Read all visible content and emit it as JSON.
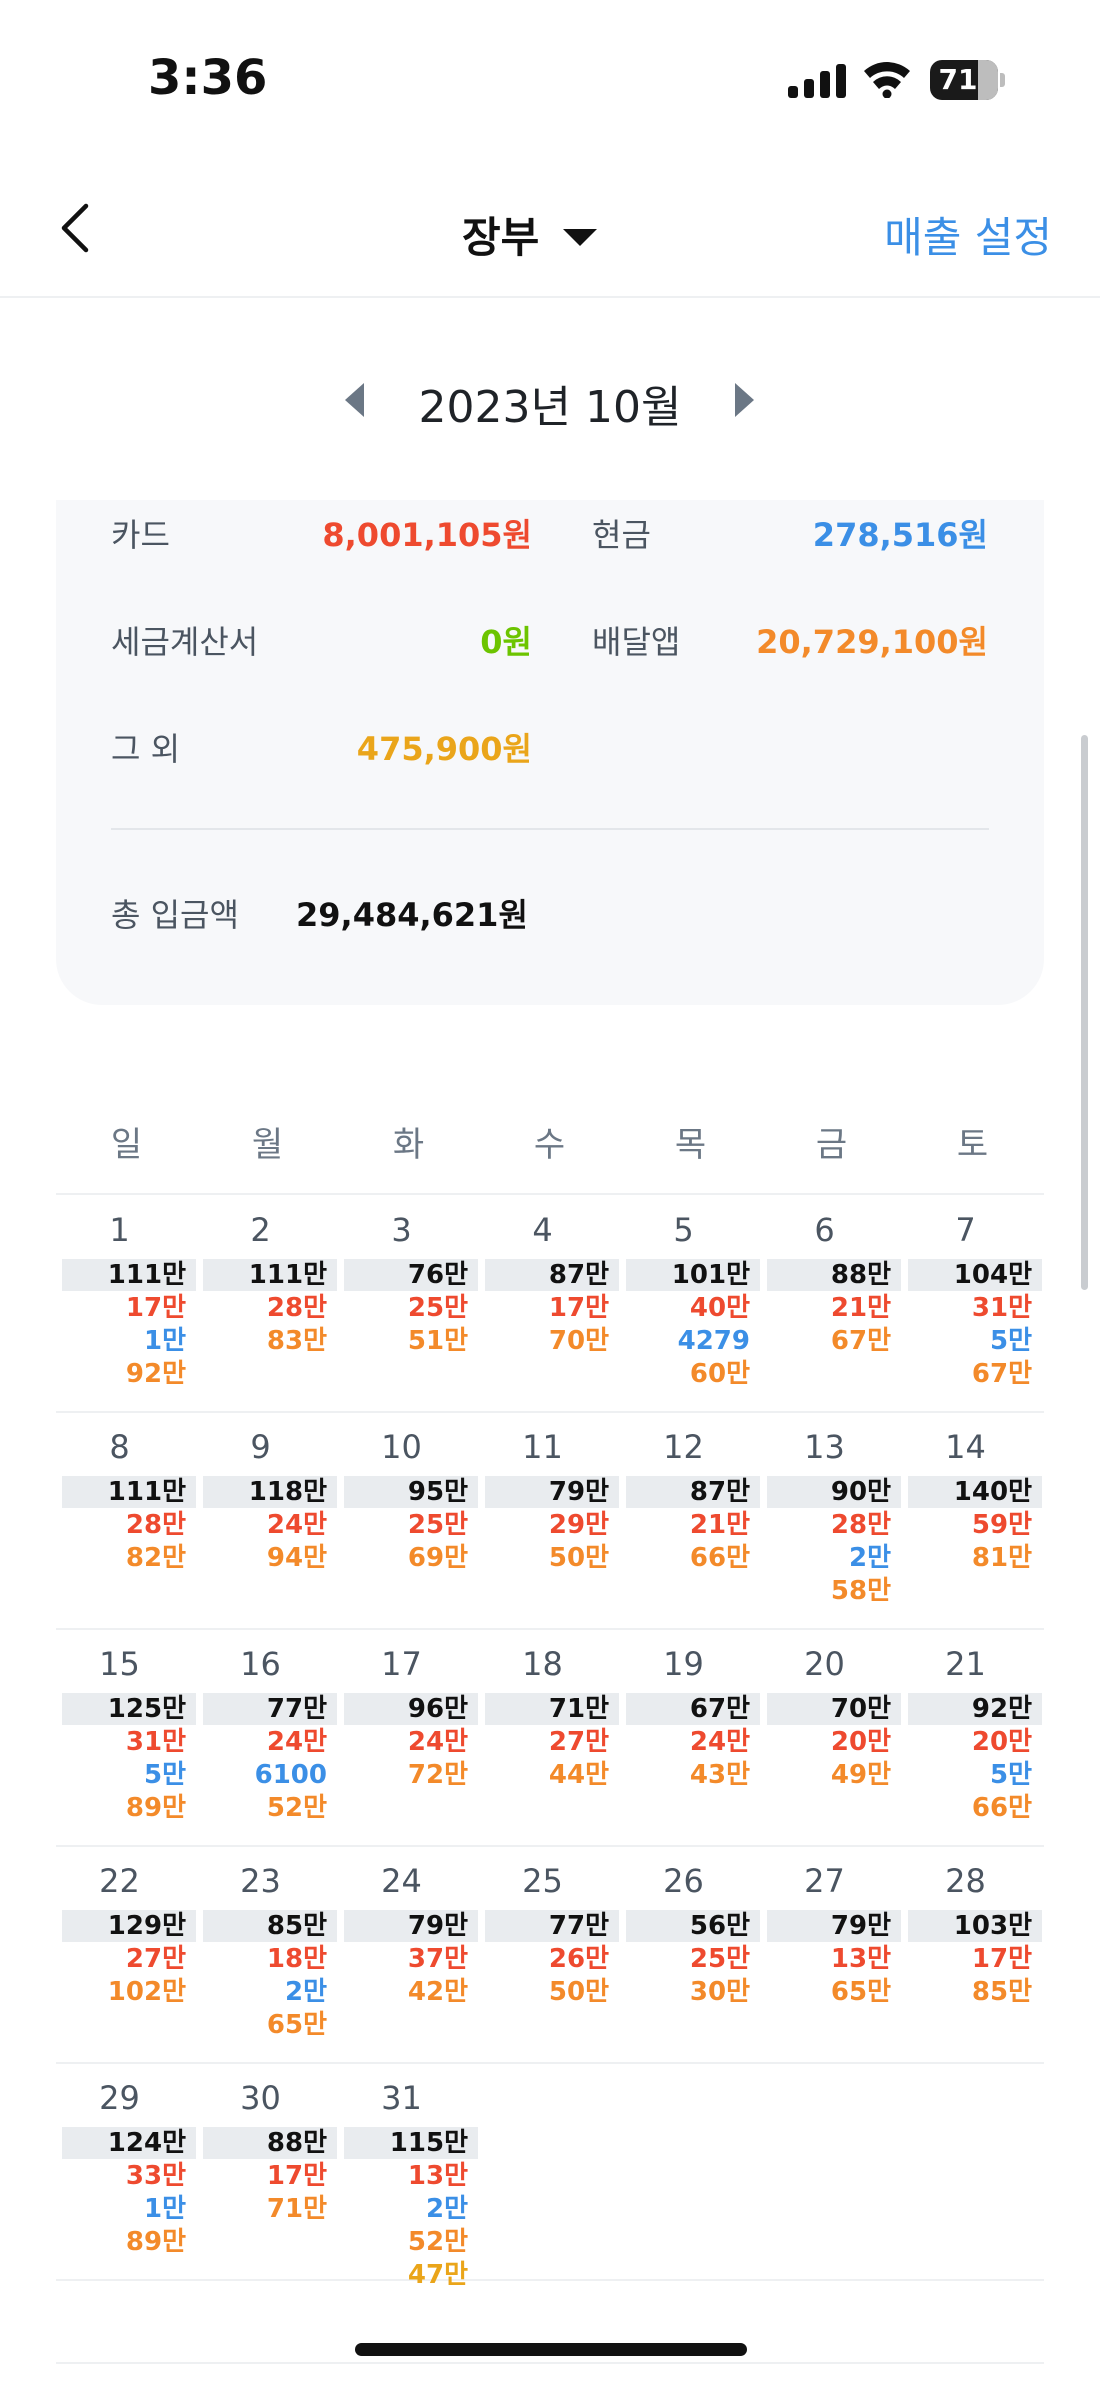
{
  "status_bar": {
    "time": "3:36",
    "battery": "71",
    "battery_level": 0.71
  },
  "nav": {
    "title": "장부",
    "action": "매출 설정"
  },
  "month": {
    "label": "2023년 10월"
  },
  "summary": {
    "card": {
      "label": "카드",
      "value": "8,001,105원",
      "color": "#ee4a2f"
    },
    "cash": {
      "label": "현금",
      "value": "278,516원",
      "color": "#3b8fe6"
    },
    "tax_invoice": {
      "label": "세금계산서",
      "value": "0원",
      "color": "#6cc400"
    },
    "delivery": {
      "label": "배달앱",
      "value": "20,729,100원",
      "color": "#f38a2a"
    },
    "other": {
      "label": "그 외",
      "value": "475,900원",
      "color": "#eaa51a"
    },
    "total": {
      "label": "총 입금액",
      "value": "29,484,621원"
    }
  },
  "weekdays": [
    "일",
    "월",
    "화",
    "수",
    "목",
    "금",
    "토"
  ],
  "weeks": [
    [
      {
        "day": "1",
        "total": "111만",
        "lines": [
          {
            "v": "17만",
            "c": "red"
          },
          {
            "v": "1만",
            "c": "blue"
          },
          {
            "v": "92만",
            "c": "orange"
          }
        ]
      },
      {
        "day": "2",
        "total": "111만",
        "lines": [
          {
            "v": "28만",
            "c": "red"
          },
          {
            "v": "83만",
            "c": "orange"
          }
        ]
      },
      {
        "day": "3",
        "total": "76만",
        "lines": [
          {
            "v": "25만",
            "c": "red"
          },
          {
            "v": "51만",
            "c": "orange"
          }
        ]
      },
      {
        "day": "4",
        "total": "87만",
        "lines": [
          {
            "v": "17만",
            "c": "red"
          },
          {
            "v": "70만",
            "c": "orange"
          }
        ]
      },
      {
        "day": "5",
        "total": "101만",
        "lines": [
          {
            "v": "40만",
            "c": "red"
          },
          {
            "v": "4279",
            "c": "blue"
          },
          {
            "v": "60만",
            "c": "orange"
          }
        ]
      },
      {
        "day": "6",
        "total": "88만",
        "lines": [
          {
            "v": "21만",
            "c": "red"
          },
          {
            "v": "67만",
            "c": "orange"
          }
        ]
      },
      {
        "day": "7",
        "total": "104만",
        "lines": [
          {
            "v": "31만",
            "c": "red"
          },
          {
            "v": "5만",
            "c": "blue"
          },
          {
            "v": "67만",
            "c": "orange"
          }
        ]
      }
    ],
    [
      {
        "day": "8",
        "total": "111만",
        "lines": [
          {
            "v": "28만",
            "c": "red"
          },
          {
            "v": "82만",
            "c": "orange"
          }
        ]
      },
      {
        "day": "9",
        "total": "118만",
        "lines": [
          {
            "v": "24만",
            "c": "red"
          },
          {
            "v": "94만",
            "c": "orange"
          }
        ]
      },
      {
        "day": "10",
        "total": "95만",
        "lines": [
          {
            "v": "25만",
            "c": "red"
          },
          {
            "v": "69만",
            "c": "orange"
          }
        ]
      },
      {
        "day": "11",
        "total": "79만",
        "lines": [
          {
            "v": "29만",
            "c": "red"
          },
          {
            "v": "50만",
            "c": "orange"
          }
        ]
      },
      {
        "day": "12",
        "total": "87만",
        "lines": [
          {
            "v": "21만",
            "c": "red"
          },
          {
            "v": "66만",
            "c": "orange"
          }
        ]
      },
      {
        "day": "13",
        "total": "90만",
        "lines": [
          {
            "v": "28만",
            "c": "red"
          },
          {
            "v": "2만",
            "c": "blue"
          },
          {
            "v": "58만",
            "c": "orange"
          }
        ]
      },
      {
        "day": "14",
        "total": "140만",
        "lines": [
          {
            "v": "59만",
            "c": "red"
          },
          {
            "v": "81만",
            "c": "orange"
          }
        ]
      }
    ],
    [
      {
        "day": "15",
        "total": "125만",
        "lines": [
          {
            "v": "31만",
            "c": "red"
          },
          {
            "v": "5만",
            "c": "blue"
          },
          {
            "v": "89만",
            "c": "orange"
          }
        ]
      },
      {
        "day": "16",
        "total": "77만",
        "lines": [
          {
            "v": "24만",
            "c": "red"
          },
          {
            "v": "6100",
            "c": "blue"
          },
          {
            "v": "52만",
            "c": "orange"
          }
        ]
      },
      {
        "day": "17",
        "total": "96만",
        "lines": [
          {
            "v": "24만",
            "c": "red"
          },
          {
            "v": "72만",
            "c": "orange"
          }
        ]
      },
      {
        "day": "18",
        "total": "71만",
        "lines": [
          {
            "v": "27만",
            "c": "red"
          },
          {
            "v": "44만",
            "c": "orange"
          }
        ]
      },
      {
        "day": "19",
        "total": "67만",
        "lines": [
          {
            "v": "24만",
            "c": "red"
          },
          {
            "v": "43만",
            "c": "orange"
          }
        ]
      },
      {
        "day": "20",
        "total": "70만",
        "lines": [
          {
            "v": "20만",
            "c": "red"
          },
          {
            "v": "49만",
            "c": "orange"
          }
        ]
      },
      {
        "day": "21",
        "total": "92만",
        "lines": [
          {
            "v": "20만",
            "c": "red"
          },
          {
            "v": "5만",
            "c": "blue"
          },
          {
            "v": "66만",
            "c": "orange"
          }
        ]
      }
    ],
    [
      {
        "day": "22",
        "total": "129만",
        "lines": [
          {
            "v": "27만",
            "c": "red"
          },
          {
            "v": "102만",
            "c": "orange"
          }
        ]
      },
      {
        "day": "23",
        "total": "85만",
        "lines": [
          {
            "v": "18만",
            "c": "red"
          },
          {
            "v": "2만",
            "c": "blue"
          },
          {
            "v": "65만",
            "c": "orange"
          }
        ]
      },
      {
        "day": "24",
        "total": "79만",
        "lines": [
          {
            "v": "37만",
            "c": "red"
          },
          {
            "v": "42만",
            "c": "orange"
          }
        ]
      },
      {
        "day": "25",
        "total": "77만",
        "lines": [
          {
            "v": "26만",
            "c": "red"
          },
          {
            "v": "50만",
            "c": "orange"
          }
        ]
      },
      {
        "day": "26",
        "total": "56만",
        "lines": [
          {
            "v": "25만",
            "c": "red"
          },
          {
            "v": "30만",
            "c": "orange"
          }
        ]
      },
      {
        "day": "27",
        "total": "79만",
        "lines": [
          {
            "v": "13만",
            "c": "red"
          },
          {
            "v": "65만",
            "c": "orange"
          }
        ]
      },
      {
        "day": "28",
        "total": "103만",
        "lines": [
          {
            "v": "17만",
            "c": "red"
          },
          {
            "v": "85만",
            "c": "orange"
          }
        ]
      }
    ],
    [
      {
        "day": "29",
        "total": "124만",
        "lines": [
          {
            "v": "33만",
            "c": "red"
          },
          {
            "v": "1만",
            "c": "blue"
          },
          {
            "v": "89만",
            "c": "orange"
          }
        ]
      },
      {
        "day": "30",
        "total": "88만",
        "lines": [
          {
            "v": "17만",
            "c": "red"
          },
          {
            "v": "71만",
            "c": "orange"
          }
        ]
      },
      {
        "day": "31",
        "total": "115만",
        "lines": [
          {
            "v": "13만",
            "c": "red"
          },
          {
            "v": "2만",
            "c": "blue"
          },
          {
            "v": "52만",
            "c": "orange"
          },
          {
            "v": "47만",
            "c": "yellow"
          }
        ]
      }
    ]
  ]
}
